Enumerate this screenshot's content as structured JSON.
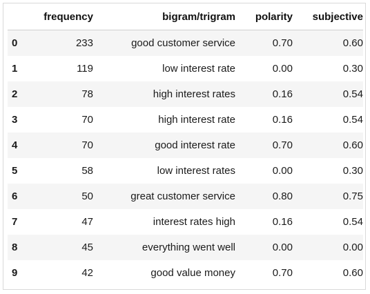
{
  "table": {
    "columns": [
      "",
      "frequency",
      "bigram/trigram",
      "polarity",
      "subjective"
    ],
    "rows": [
      {
        "index": "0",
        "frequency": "233",
        "gram": "good customer service",
        "polarity": "0.70",
        "subjective": "0.60"
      },
      {
        "index": "1",
        "frequency": "119",
        "gram": "low interest rate",
        "polarity": "0.00",
        "subjective": "0.30"
      },
      {
        "index": "2",
        "frequency": "78",
        "gram": "high interest rates",
        "polarity": "0.16",
        "subjective": "0.54"
      },
      {
        "index": "3",
        "frequency": "70",
        "gram": "high interest rate",
        "polarity": "0.16",
        "subjective": "0.54"
      },
      {
        "index": "4",
        "frequency": "70",
        "gram": "good interest rate",
        "polarity": "0.70",
        "subjective": "0.60"
      },
      {
        "index": "5",
        "frequency": "58",
        "gram": "low interest rates",
        "polarity": "0.00",
        "subjective": "0.30"
      },
      {
        "index": "6",
        "frequency": "50",
        "gram": "great customer service",
        "polarity": "0.80",
        "subjective": "0.75"
      },
      {
        "index": "7",
        "frequency": "47",
        "gram": "interest rates high",
        "polarity": "0.16",
        "subjective": "0.54"
      },
      {
        "index": "8",
        "frequency": "45",
        "gram": "everything went well",
        "polarity": "0.00",
        "subjective": "0.00"
      },
      {
        "index": "9",
        "frequency": "42",
        "gram": "good value money",
        "polarity": "0.70",
        "subjective": "0.60"
      }
    ]
  },
  "colors": {
    "stripe": "#f5f5f5",
    "border": "#d9d9d9",
    "text": "#1a1a1a"
  }
}
